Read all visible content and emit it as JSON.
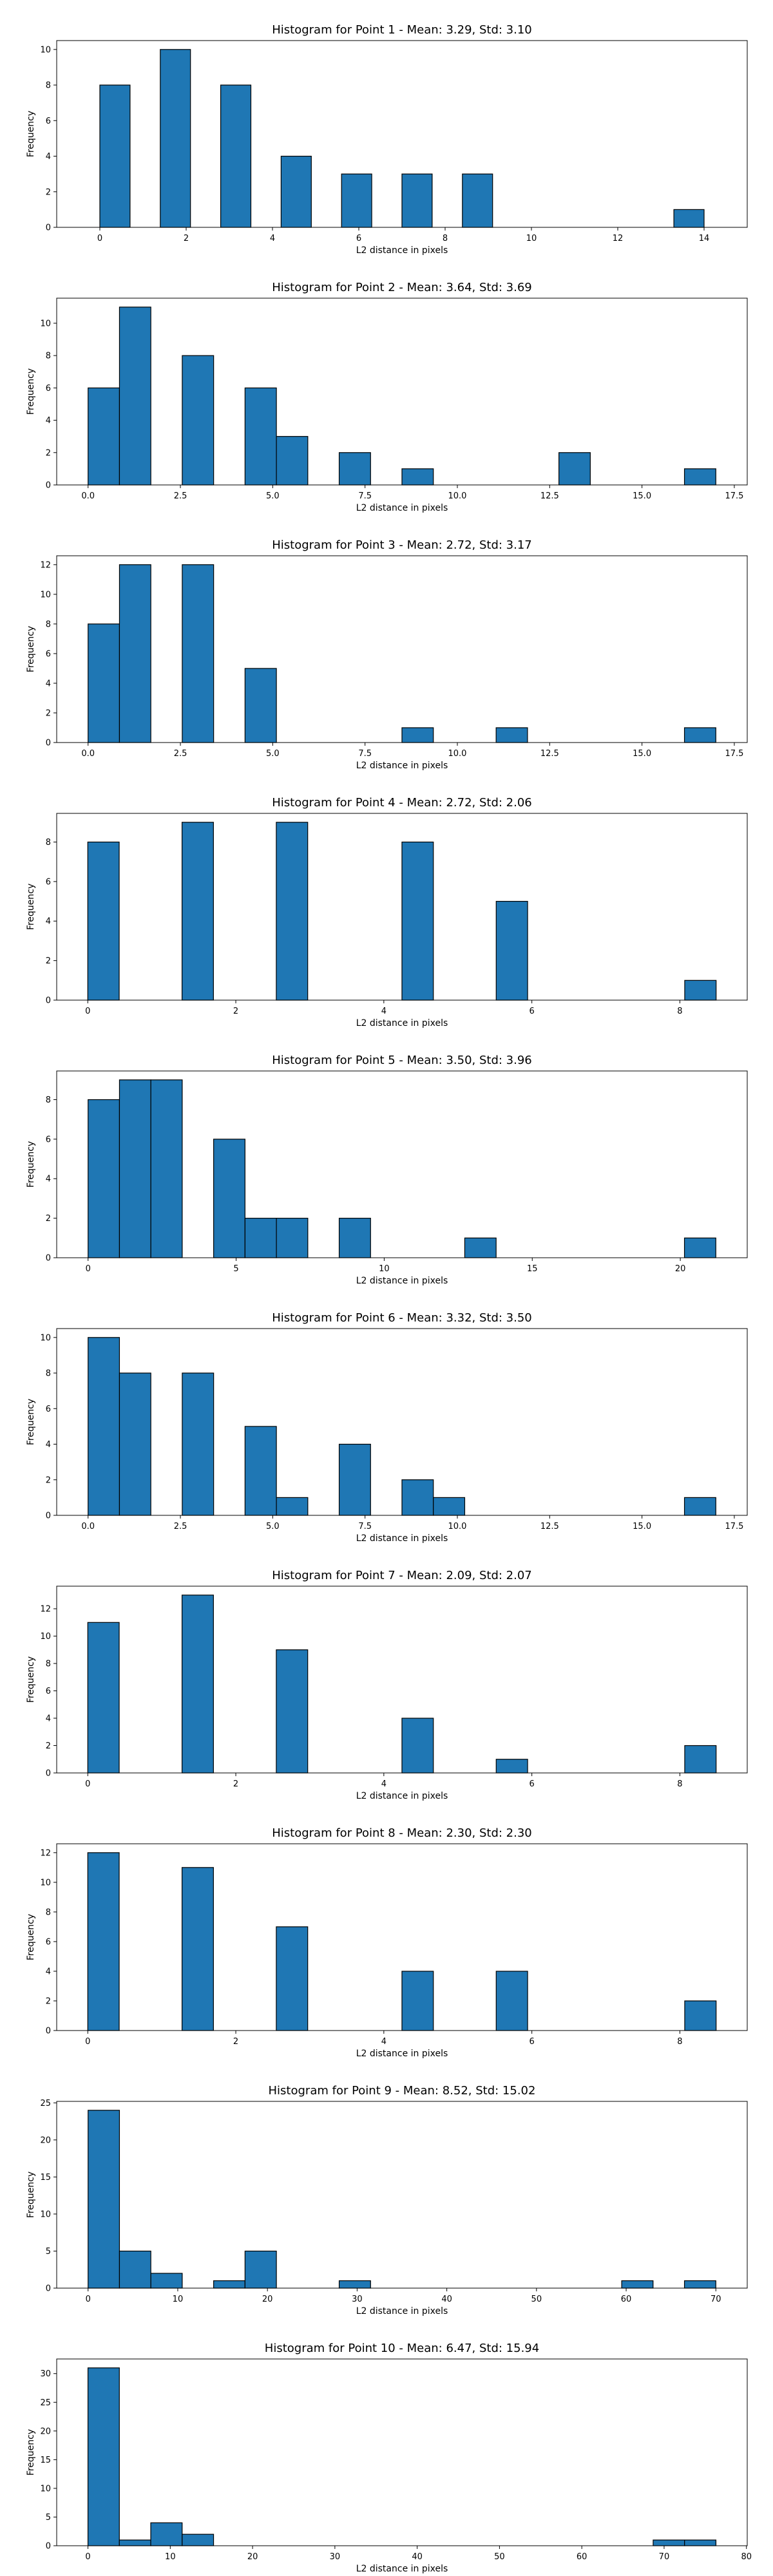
{
  "figure": {
    "background": "#ffffff",
    "bar_color": "#1f77b4",
    "edge_color": "#000000"
  },
  "chart_data": [
    {
      "type": "bar",
      "title": "Histogram for Point 1 - Mean: 3.29, Std: 3.10",
      "xlabel": "L2 distance in pixels",
      "ylabel": "Frequency",
      "xlim": [
        -1.0,
        15.0
      ],
      "ylim": [
        0,
        10.5
      ],
      "xticks": [
        0,
        2,
        4,
        6,
        8,
        10,
        12,
        14
      ],
      "xtick_labels": [
        "0",
        "2",
        "4",
        "6",
        "8",
        "10",
        "12",
        "14"
      ],
      "yticks": [
        0,
        2,
        4,
        6,
        8,
        10
      ],
      "ytick_labels": [
        "0",
        "2",
        "4",
        "6",
        "8",
        "10"
      ],
      "bins": [
        {
          "x0": 0.0,
          "x1": 0.7,
          "value": 8
        },
        {
          "x0": 1.4,
          "x1": 2.1,
          "value": 10
        },
        {
          "x0": 2.8,
          "x1": 3.5,
          "value": 8
        },
        {
          "x0": 4.2,
          "x1": 4.9,
          "value": 4
        },
        {
          "x0": 5.6,
          "x1": 6.3,
          "value": 3
        },
        {
          "x0": 7.0,
          "x1": 7.7,
          "value": 3
        },
        {
          "x0": 8.4,
          "x1": 9.1,
          "value": 3
        },
        {
          "x0": 13.3,
          "x1": 14.0,
          "value": 1
        }
      ]
    },
    {
      "type": "bar",
      "title": "Histogram for Point 2 - Mean: 3.64, Std: 3.69",
      "xlabel": "L2 distance in pixels",
      "ylabel": "Frequency",
      "xlim": [
        -0.85,
        17.85
      ],
      "ylim": [
        0,
        11.55
      ],
      "xticks": [
        0.0,
        2.5,
        5.0,
        7.5,
        10.0,
        12.5,
        15.0,
        17.5
      ],
      "xtick_labels": [
        "0.0",
        "2.5",
        "5.0",
        "7.5",
        "10.0",
        "12.5",
        "15.0",
        "17.5"
      ],
      "yticks": [
        0,
        2,
        4,
        6,
        8,
        10
      ],
      "ytick_labels": [
        "0",
        "2",
        "4",
        "6",
        "8",
        "10"
      ],
      "bins": [
        {
          "x0": 0.0,
          "x1": 0.85,
          "value": 6
        },
        {
          "x0": 0.85,
          "x1": 1.7,
          "value": 11
        },
        {
          "x0": 2.55,
          "x1": 3.4,
          "value": 8
        },
        {
          "x0": 4.25,
          "x1": 5.1,
          "value": 6
        },
        {
          "x0": 5.1,
          "x1": 5.95,
          "value": 3
        },
        {
          "x0": 6.8,
          "x1": 7.65,
          "value": 2
        },
        {
          "x0": 8.5,
          "x1": 9.35,
          "value": 1
        },
        {
          "x0": 12.75,
          "x1": 13.6,
          "value": 2
        },
        {
          "x0": 16.15,
          "x1": 17.0,
          "value": 1
        }
      ]
    },
    {
      "type": "bar",
      "title": "Histogram for Point 3 - Mean: 2.72, Std: 3.17",
      "xlabel": "L2 distance in pixels",
      "ylabel": "Frequency",
      "xlim": [
        -0.85,
        17.85
      ],
      "ylim": [
        0,
        12.6
      ],
      "xticks": [
        0.0,
        2.5,
        5.0,
        7.5,
        10.0,
        12.5,
        15.0,
        17.5
      ],
      "xtick_labels": [
        "0.0",
        "2.5",
        "5.0",
        "7.5",
        "10.0",
        "12.5",
        "15.0",
        "17.5"
      ],
      "yticks": [
        0,
        2,
        4,
        6,
        8,
        10,
        12
      ],
      "ytick_labels": [
        "0",
        "2",
        "4",
        "6",
        "8",
        "10",
        "12"
      ],
      "bins": [
        {
          "x0": 0.0,
          "x1": 0.85,
          "value": 8
        },
        {
          "x0": 0.85,
          "x1": 1.7,
          "value": 12
        },
        {
          "x0": 2.55,
          "x1": 3.4,
          "value": 12
        },
        {
          "x0": 4.25,
          "x1": 5.1,
          "value": 5
        },
        {
          "x0": 8.5,
          "x1": 9.35,
          "value": 1
        },
        {
          "x0": 11.05,
          "x1": 11.9,
          "value": 1
        },
        {
          "x0": 16.15,
          "x1": 17.0,
          "value": 1
        }
      ]
    },
    {
      "type": "bar",
      "title": "Histogram for Point 4 - Mean: 2.72, Std: 2.06",
      "xlabel": "L2 distance in pixels",
      "ylabel": "Frequency",
      "xlim": [
        -0.42,
        8.91
      ],
      "ylim": [
        0,
        9.45
      ],
      "xticks": [
        0,
        2,
        4,
        6,
        8
      ],
      "xtick_labels": [
        "0",
        "2",
        "4",
        "6",
        "8"
      ],
      "yticks": [
        0,
        2,
        4,
        6,
        8
      ],
      "ytick_labels": [
        "0",
        "2",
        "4",
        "6",
        "8"
      ],
      "bins": [
        {
          "x0": 0.0,
          "x1": 0.4245,
          "value": 8
        },
        {
          "x0": 1.2735,
          "x1": 1.698,
          "value": 9
        },
        {
          "x0": 2.547,
          "x1": 2.9715,
          "value": 9
        },
        {
          "x0": 4.2448,
          "x1": 4.6693,
          "value": 8
        },
        {
          "x0": 5.5183,
          "x1": 5.9428,
          "value": 5
        },
        {
          "x0": 8.0653,
          "x1": 8.4898,
          "value": 1
        }
      ]
    },
    {
      "type": "bar",
      "title": "Histogram for Point 5 - Mean: 3.50, Std: 3.96",
      "xlabel": "L2 distance in pixels",
      "ylabel": "Frequency",
      "xlim": [
        -1.06,
        22.26
      ],
      "ylim": [
        0,
        9.45
      ],
      "xticks": [
        0,
        5,
        10,
        15,
        20
      ],
      "xtick_labels": [
        "0",
        "5",
        "10",
        "15",
        "20"
      ],
      "yticks": [
        0,
        2,
        4,
        6,
        8
      ],
      "ytick_labels": [
        "0",
        "2",
        "4",
        "6",
        "8"
      ],
      "bins": [
        {
          "x0": 0.0,
          "x1": 1.06,
          "value": 8
        },
        {
          "x0": 1.06,
          "x1": 2.12,
          "value": 9
        },
        {
          "x0": 2.12,
          "x1": 3.18,
          "value": 9
        },
        {
          "x0": 4.24,
          "x1": 5.3,
          "value": 6
        },
        {
          "x0": 5.3,
          "x1": 6.36,
          "value": 2
        },
        {
          "x0": 6.36,
          "x1": 7.42,
          "value": 2
        },
        {
          "x0": 8.48,
          "x1": 9.54,
          "value": 2
        },
        {
          "x0": 12.72,
          "x1": 13.78,
          "value": 1
        },
        {
          "x0": 20.14,
          "x1": 21.2,
          "value": 1
        }
      ]
    },
    {
      "type": "bar",
      "title": "Histogram for Point 6 - Mean: 3.32, Std: 3.50",
      "xlabel": "L2 distance in pixels",
      "ylabel": "Frequency",
      "xlim": [
        -0.85,
        17.85
      ],
      "ylim": [
        0,
        10.5
      ],
      "xticks": [
        0.0,
        2.5,
        5.0,
        7.5,
        10.0,
        12.5,
        15.0,
        17.5
      ],
      "xtick_labels": [
        "0.0",
        "2.5",
        "5.0",
        "7.5",
        "10.0",
        "12.5",
        "15.0",
        "17.5"
      ],
      "yticks": [
        0,
        2,
        4,
        6,
        8,
        10
      ],
      "ytick_labels": [
        "0",
        "2",
        "4",
        "6",
        "8",
        "10"
      ],
      "bins": [
        {
          "x0": 0.0,
          "x1": 0.85,
          "value": 10
        },
        {
          "x0": 0.85,
          "x1": 1.7,
          "value": 8
        },
        {
          "x0": 2.55,
          "x1": 3.4,
          "value": 8
        },
        {
          "x0": 4.25,
          "x1": 5.1,
          "value": 5
        },
        {
          "x0": 5.1,
          "x1": 5.95,
          "value": 1
        },
        {
          "x0": 6.8,
          "x1": 7.65,
          "value": 4
        },
        {
          "x0": 8.5,
          "x1": 9.35,
          "value": 2
        },
        {
          "x0": 9.35,
          "x1": 10.2,
          "value": 1
        },
        {
          "x0": 16.15,
          "x1": 17.0,
          "value": 1
        }
      ]
    },
    {
      "type": "bar",
      "title": "Histogram for Point 7 - Mean: 2.09, Std: 2.07",
      "xlabel": "L2 distance in pixels",
      "ylabel": "Frequency",
      "xlim": [
        -0.42,
        8.91
      ],
      "ylim": [
        0,
        13.65
      ],
      "xticks": [
        0,
        2,
        4,
        6,
        8
      ],
      "xtick_labels": [
        "0",
        "2",
        "4",
        "6",
        "8"
      ],
      "yticks": [
        0,
        2,
        4,
        6,
        8,
        10,
        12
      ],
      "ytick_labels": [
        "0",
        "2",
        "4",
        "6",
        "8",
        "10",
        "12"
      ],
      "bins": [
        {
          "x0": 0.0,
          "x1": 0.4245,
          "value": 11
        },
        {
          "x0": 1.2735,
          "x1": 1.698,
          "value": 13
        },
        {
          "x0": 2.547,
          "x1": 2.9715,
          "value": 9
        },
        {
          "x0": 4.2448,
          "x1": 4.6693,
          "value": 4
        },
        {
          "x0": 5.5183,
          "x1": 5.9428,
          "value": 1
        },
        {
          "x0": 8.0653,
          "x1": 8.4898,
          "value": 2
        }
      ]
    },
    {
      "type": "bar",
      "title": "Histogram for Point 8 - Mean: 2.30, Std: 2.30",
      "xlabel": "L2 distance in pixels",
      "ylabel": "Frequency",
      "xlim": [
        -0.42,
        8.91
      ],
      "ylim": [
        0,
        12.6
      ],
      "xticks": [
        0,
        2,
        4,
        6,
        8
      ],
      "xtick_labels": [
        "0",
        "2",
        "4",
        "6",
        "8"
      ],
      "yticks": [
        0,
        2,
        4,
        6,
        8,
        10,
        12
      ],
      "ytick_labels": [
        "0",
        "2",
        "4",
        "6",
        "8",
        "10",
        "12"
      ],
      "bins": [
        {
          "x0": 0.0,
          "x1": 0.4245,
          "value": 12
        },
        {
          "x0": 1.2735,
          "x1": 1.698,
          "value": 11
        },
        {
          "x0": 2.547,
          "x1": 2.9715,
          "value": 7
        },
        {
          "x0": 4.2448,
          "x1": 4.6693,
          "value": 4
        },
        {
          "x0": 5.5183,
          "x1": 5.9428,
          "value": 4
        },
        {
          "x0": 8.0653,
          "x1": 8.4898,
          "value": 2
        }
      ]
    },
    {
      "type": "bar",
      "title": "Histogram for Point 9 - Mean: 8.52, Std: 15.02",
      "xlabel": "L2 distance in pixels",
      "ylabel": "Frequency",
      "xlim": [
        -3.5,
        73.5
      ],
      "ylim": [
        0,
        25.2
      ],
      "xticks": [
        0,
        10,
        20,
        30,
        40,
        50,
        60,
        70
      ],
      "xtick_labels": [
        "0",
        "10",
        "20",
        "30",
        "40",
        "50",
        "60",
        "70"
      ],
      "yticks": [
        0,
        5,
        10,
        15,
        20,
        25
      ],
      "ytick_labels": [
        "0",
        "5",
        "10",
        "15",
        "20",
        "25"
      ],
      "bins": [
        {
          "x0": 0.0,
          "x1": 3.5,
          "value": 24
        },
        {
          "x0": 3.5,
          "x1": 7.0,
          "value": 5
        },
        {
          "x0": 7.0,
          "x1": 10.5,
          "value": 2
        },
        {
          "x0": 14.0,
          "x1": 17.5,
          "value": 1
        },
        {
          "x0": 17.5,
          "x1": 21.0,
          "value": 5
        },
        {
          "x0": 28.0,
          "x1": 31.5,
          "value": 1
        },
        {
          "x0": 59.5,
          "x1": 63.0,
          "value": 1
        },
        {
          "x0": 66.5,
          "x1": 70.0,
          "value": 1
        }
      ]
    },
    {
      "type": "bar",
      "title": "Histogram for Point 10 - Mean: 6.47, Std: 15.94",
      "xlabel": "L2 distance in pixels",
      "ylabel": "Frequency",
      "xlim": [
        -3.8,
        80.1
      ],
      "ylim": [
        0,
        32.55
      ],
      "xticks": [
        0,
        10,
        20,
        30,
        40,
        50,
        60,
        70,
        80
      ],
      "xtick_labels": [
        "0",
        "10",
        "20",
        "30",
        "40",
        "50",
        "60",
        "70",
        "80"
      ],
      "yticks": [
        0,
        5,
        10,
        15,
        20,
        25,
        30
      ],
      "ytick_labels": [
        "0",
        "5",
        "10",
        "15",
        "20",
        "25",
        "30"
      ],
      "bins": [
        {
          "x0": 0.0,
          "x1": 3.815,
          "value": 31
        },
        {
          "x0": 3.815,
          "x1": 7.63,
          "value": 1
        },
        {
          "x0": 7.63,
          "x1": 11.445,
          "value": 4
        },
        {
          "x0": 11.445,
          "x1": 15.26,
          "value": 2
        },
        {
          "x0": 68.67,
          "x1": 72.485,
          "value": 1
        },
        {
          "x0": 72.485,
          "x1": 76.3,
          "value": 1
        }
      ]
    }
  ]
}
